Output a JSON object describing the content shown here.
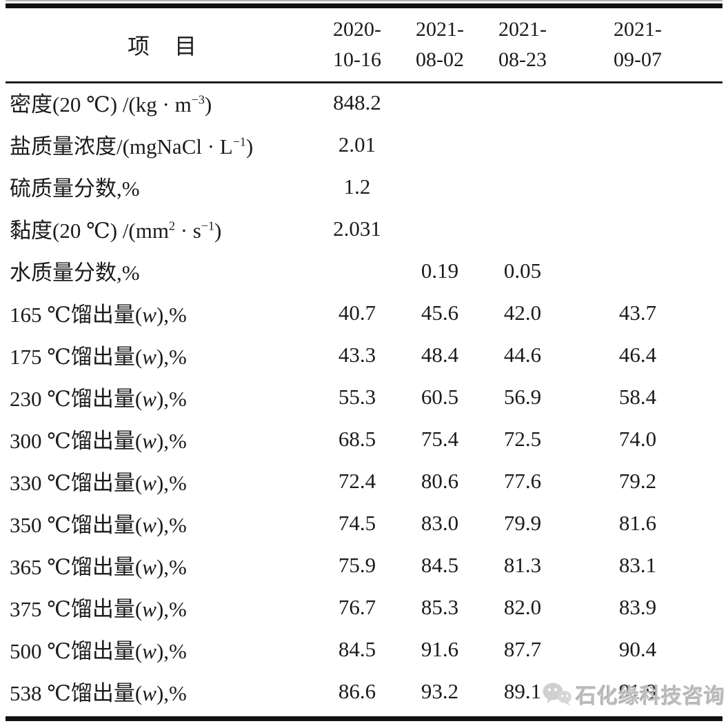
{
  "table": {
    "header": {
      "item_label": "项　目",
      "date_columns": [
        [
          "2020-",
          "10-16"
        ],
        [
          "2021-",
          "08-02"
        ],
        [
          "2021-",
          "08-23"
        ],
        [
          "2021-",
          "09-07"
        ]
      ]
    },
    "rows": [
      {
        "label": [
          {
            "t": "密度(20 ℃) /(kg · m"
          },
          {
            "t": "−3",
            "sup": true
          },
          {
            "t": ")"
          }
        ],
        "values": [
          "848.2",
          "",
          "",
          ""
        ]
      },
      {
        "label": [
          {
            "t": "盐质量浓度/(mgNaCl · L"
          },
          {
            "t": "−1",
            "sup": true
          },
          {
            "t": ")"
          }
        ],
        "values": [
          "2.01",
          "",
          "",
          ""
        ]
      },
      {
        "label": [
          {
            "t": "硫质量分数,%"
          }
        ],
        "values": [
          "1.2",
          "",
          "",
          ""
        ]
      },
      {
        "label": [
          {
            "t": "黏度(20 ℃) /(mm"
          },
          {
            "t": "2",
            "sup": true
          },
          {
            "t": " · s"
          },
          {
            "t": "−1",
            "sup": true
          },
          {
            "t": ")"
          }
        ],
        "values": [
          "2.031",
          "",
          "",
          ""
        ]
      },
      {
        "label": [
          {
            "t": "水质量分数,%"
          }
        ],
        "values": [
          "",
          "0.19",
          "0.05",
          ""
        ]
      },
      {
        "label": [
          {
            "t": "165 ℃馏出量("
          },
          {
            "t": "w",
            "i": true
          },
          {
            "t": "),%"
          }
        ],
        "values": [
          "40.7",
          "45.6",
          "42.0",
          "43.7"
        ]
      },
      {
        "label": [
          {
            "t": "175 ℃馏出量("
          },
          {
            "t": "w",
            "i": true
          },
          {
            "t": "),%"
          }
        ],
        "values": [
          "43.3",
          "48.4",
          "44.6",
          "46.4"
        ]
      },
      {
        "label": [
          {
            "t": "230 ℃馏出量("
          },
          {
            "t": "w",
            "i": true
          },
          {
            "t": "),%"
          }
        ],
        "values": [
          "55.3",
          "60.5",
          "56.9",
          "58.4"
        ]
      },
      {
        "label": [
          {
            "t": "300 ℃馏出量("
          },
          {
            "t": "w",
            "i": true
          },
          {
            "t": "),%"
          }
        ],
        "values": [
          "68.5",
          "75.4",
          "72.5",
          "74.0"
        ]
      },
      {
        "label": [
          {
            "t": "330 ℃馏出量("
          },
          {
            "t": "w",
            "i": true
          },
          {
            "t": "),%"
          }
        ],
        "values": [
          "72.4",
          "80.6",
          "77.6",
          "79.2"
        ]
      },
      {
        "label": [
          {
            "t": "350 ℃馏出量("
          },
          {
            "t": "w",
            "i": true
          },
          {
            "t": "),%"
          }
        ],
        "values": [
          "74.5",
          "83.0",
          "79.9",
          "81.6"
        ]
      },
      {
        "label": [
          {
            "t": "365 ℃馏出量("
          },
          {
            "t": "w",
            "i": true
          },
          {
            "t": "),%"
          }
        ],
        "values": [
          "75.9",
          "84.5",
          "81.3",
          "83.1"
        ]
      },
      {
        "label": [
          {
            "t": "375 ℃馏出量("
          },
          {
            "t": "w",
            "i": true
          },
          {
            "t": "),%"
          }
        ],
        "values": [
          "76.7",
          "85.3",
          "82.0",
          "83.9"
        ]
      },
      {
        "label": [
          {
            "t": "500 ℃馏出量("
          },
          {
            "t": "w",
            "i": true
          },
          {
            "t": "),%"
          }
        ],
        "values": [
          "84.5",
          "91.6",
          "87.7",
          "90.4"
        ]
      },
      {
        "label": [
          {
            "t": "538 ℃馏出量("
          },
          {
            "t": "w",
            "i": true
          },
          {
            "t": "),%"
          }
        ],
        "values": [
          "86.6",
          "93.2",
          "89.1",
          "91.9"
        ]
      }
    ]
  },
  "watermark": {
    "icon": "wechat-icon",
    "text": "石化缘科技咨询"
  },
  "colors": {
    "text": "#1b1b1b",
    "rule_heavy": "#111111",
    "rule_thin": "#b5b5b5",
    "watermark_gray": "#b0b0b0"
  }
}
